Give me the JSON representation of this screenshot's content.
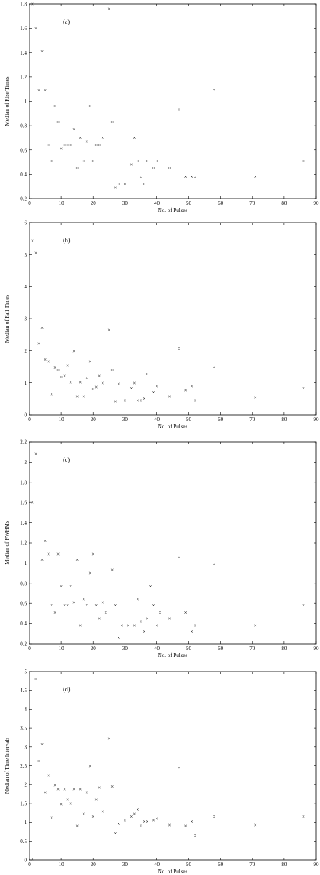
{
  "chart_data": [
    {
      "type": "scatter",
      "panel_label": "(a)",
      "xlabel": "No. of Pulses",
      "ylabel": "Median of Rise Times",
      "xlim": [
        0,
        90
      ],
      "ylim": [
        0.2,
        1.8
      ],
      "xticks": [
        0,
        10,
        20,
        30,
        40,
        50,
        60,
        70,
        80,
        90
      ],
      "yticks": [
        0.2,
        0.4,
        0.6,
        0.8,
        1,
        1.2,
        1.4,
        1.6,
        1.8
      ],
      "ytick_labels": [
        "0.2",
        "0.4",
        "0.6",
        "0.8",
        "1",
        "1.2",
        "1.4",
        "1.6",
        "1.8"
      ],
      "marker": "×",
      "points": [
        [
          1,
          1.8
        ],
        [
          2,
          1.6
        ],
        [
          3,
          1.09
        ],
        [
          4,
          1.41
        ],
        [
          5,
          1.09
        ],
        [
          6,
          0.64
        ],
        [
          7,
          0.51
        ],
        [
          8,
          0.96
        ],
        [
          9,
          0.83
        ],
        [
          10,
          0.61
        ],
        [
          11,
          0.64
        ],
        [
          12,
          0.64
        ],
        [
          13,
          0.64
        ],
        [
          14,
          0.77
        ],
        [
          15,
          0.45
        ],
        [
          16,
          0.7
        ],
        [
          17,
          0.51
        ],
        [
          18,
          0.67
        ],
        [
          19,
          0.96
        ],
        [
          20,
          0.51
        ],
        [
          21,
          0.64
        ],
        [
          22,
          0.64
        ],
        [
          23,
          0.7
        ],
        [
          25,
          1.76
        ],
        [
          26,
          0.83
        ],
        [
          27,
          0.29
        ],
        [
          28,
          0.32
        ],
        [
          30,
          0.32
        ],
        [
          32,
          0.48
        ],
        [
          33,
          0.7
        ],
        [
          34,
          0.51
        ],
        [
          35,
          0.38
        ],
        [
          36,
          0.32
        ],
        [
          37,
          0.51
        ],
        [
          39,
          0.45
        ],
        [
          40,
          0.51
        ],
        [
          44,
          0.45
        ],
        [
          47,
          0.93
        ],
        [
          49,
          0.38
        ],
        [
          51,
          0.38
        ],
        [
          52,
          0.38
        ],
        [
          58,
          1.09
        ],
        [
          71,
          0.38
        ],
        [
          86,
          0.51
        ]
      ]
    },
    {
      "type": "scatter",
      "panel_label": "(b)",
      "xlabel": "No. of Pulses",
      "ylabel": "Median of Fall Times",
      "xlim": [
        0,
        90
      ],
      "ylim": [
        0,
        6
      ],
      "xticks": [
        0,
        10,
        20,
        30,
        40,
        50,
        60,
        70,
        80,
        90
      ],
      "yticks": [
        0,
        1,
        2,
        3,
        4,
        5,
        6
      ],
      "ytick_labels": [
        "0",
        "1",
        "2",
        "3",
        "4",
        "5",
        "6"
      ],
      "marker": "×",
      "points": [
        [
          1,
          5.43
        ],
        [
          2,
          5.05
        ],
        [
          3,
          2.23
        ],
        [
          4,
          2.71
        ],
        [
          5,
          1.72
        ],
        [
          6,
          1.66
        ],
        [
          7,
          0.64
        ],
        [
          8,
          1.47
        ],
        [
          9,
          1.4
        ],
        [
          10,
          1.18
        ],
        [
          11,
          1.21
        ],
        [
          12,
          1.53
        ],
        [
          13,
          1.02
        ],
        [
          14,
          1.98
        ],
        [
          15,
          0.57
        ],
        [
          16,
          1.02
        ],
        [
          17,
          0.57
        ],
        [
          18,
          1.15
        ],
        [
          19,
          1.66
        ],
        [
          20,
          0.8
        ],
        [
          21,
          0.86
        ],
        [
          22,
          1.21
        ],
        [
          23,
          0.99
        ],
        [
          25,
          2.65
        ],
        [
          26,
          1.4
        ],
        [
          27,
          0.42
        ],
        [
          28,
          0.96
        ],
        [
          30,
          0.45
        ],
        [
          32,
          0.83
        ],
        [
          33,
          0.99
        ],
        [
          34,
          0.45
        ],
        [
          35,
          0.45
        ],
        [
          36,
          0.51
        ],
        [
          37,
          1.28
        ],
        [
          39,
          0.7
        ],
        [
          40,
          0.89
        ],
        [
          44,
          0.57
        ],
        [
          47,
          2.07
        ],
        [
          49,
          0.77
        ],
        [
          51,
          0.89
        ],
        [
          52,
          0.45
        ],
        [
          58,
          1.5
        ],
        [
          71,
          0.54
        ],
        [
          86,
          0.83
        ]
      ]
    },
    {
      "type": "scatter",
      "panel_label": "(c)",
      "xlabel": "No. of Pulses",
      "ylabel": "Median of FWHMs",
      "xlim": [
        0,
        90
      ],
      "ylim": [
        0.2,
        2.2
      ],
      "xticks": [
        0,
        10,
        20,
        30,
        40,
        50,
        60,
        70,
        80,
        90
      ],
      "yticks": [
        0.2,
        0.4,
        0.6,
        0.8,
        1,
        1.2,
        1.4,
        1.6,
        1.8,
        2,
        2.2
      ],
      "ytick_labels": [
        "0.2",
        "0.4",
        "0.6",
        "0.8",
        "1",
        "1.2",
        "1.4",
        "1.6",
        "1.8",
        "2",
        "2.2"
      ],
      "marker": "×",
      "points": [
        [
          1,
          1.6
        ],
        [
          2,
          2.08
        ],
        [
          4,
          1.03
        ],
        [
          5,
          1.22
        ],
        [
          6,
          1.09
        ],
        [
          7,
          0.58
        ],
        [
          8,
          0.51
        ],
        [
          9,
          1.09
        ],
        [
          10,
          0.77
        ],
        [
          11,
          0.58
        ],
        [
          12,
          0.58
        ],
        [
          13,
          0.77
        ],
        [
          14,
          0.61
        ],
        [
          15,
          1.03
        ],
        [
          16,
          0.38
        ],
        [
          17,
          0.64
        ],
        [
          18,
          0.58
        ],
        [
          19,
          0.9
        ],
        [
          20,
          1.09
        ],
        [
          21,
          0.58
        ],
        [
          22,
          0.45
        ],
        [
          23,
          0.61
        ],
        [
          24,
          0.51
        ],
        [
          26,
          0.93
        ],
        [
          27,
          0.58
        ],
        [
          28,
          0.26
        ],
        [
          29,
          0.38
        ],
        [
          31,
          0.38
        ],
        [
          33,
          0.38
        ],
        [
          34,
          0.64
        ],
        [
          35,
          0.42
        ],
        [
          36,
          0.32
        ],
        [
          37,
          0.45
        ],
        [
          38,
          0.77
        ],
        [
          39,
          0.58
        ],
        [
          40,
          0.38
        ],
        [
          41,
          0.51
        ],
        [
          44,
          0.45
        ],
        [
          47,
          1.06
        ],
        [
          49,
          0.51
        ],
        [
          51,
          0.32
        ],
        [
          52,
          0.38
        ],
        [
          58,
          0.99
        ],
        [
          71,
          0.38
        ],
        [
          86,
          0.58
        ]
      ]
    },
    {
      "type": "scatter",
      "panel_label": "(d)",
      "xlabel": "No. of Pulses",
      "ylabel": "Median of Time Intervals",
      "xlim": [
        0,
        90
      ],
      "ylim": [
        0,
        5
      ],
      "xticks": [
        0,
        10,
        20,
        30,
        40,
        50,
        60,
        70,
        80,
        90
      ],
      "yticks": [
        0,
        0.5,
        1,
        1.5,
        2,
        2.5,
        3,
        3.5,
        4,
        4.5,
        5
      ],
      "ytick_labels": [
        "0",
        "0.5",
        "1",
        "1.5",
        "2",
        "2.5",
        "3",
        "3.5",
        "4",
        "4.5",
        "5"
      ],
      "marker": "×",
      "points": [
        [
          1,
          0.02
        ],
        [
          2,
          4.8
        ],
        [
          3,
          2.62
        ],
        [
          4,
          3.07
        ],
        [
          5,
          1.79
        ],
        [
          6,
          2.23
        ],
        [
          7,
          1.12
        ],
        [
          8,
          1.98
        ],
        [
          9,
          1.88
        ],
        [
          10,
          1.47
        ],
        [
          11,
          1.88
        ],
        [
          12,
          1.6
        ],
        [
          13,
          1.5
        ],
        [
          14,
          1.88
        ],
        [
          15,
          0.9
        ],
        [
          16,
          1.88
        ],
        [
          17,
          1.22
        ],
        [
          18,
          1.79
        ],
        [
          19,
          2.49
        ],
        [
          20,
          1.15
        ],
        [
          21,
          1.6
        ],
        [
          22,
          1.92
        ],
        [
          23,
          1.28
        ],
        [
          25,
          3.23
        ],
        [
          26,
          1.95
        ],
        [
          27,
          0.7
        ],
        [
          28,
          0.96
        ],
        [
          30,
          1.05
        ],
        [
          32,
          1.15
        ],
        [
          33,
          1.22
        ],
        [
          34,
          1.34
        ],
        [
          35,
          0.9
        ],
        [
          36,
          1.02
        ],
        [
          37,
          1.02
        ],
        [
          39,
          1.05
        ],
        [
          40,
          1.09
        ],
        [
          44,
          0.93
        ],
        [
          47,
          2.43
        ],
        [
          49,
          0.9
        ],
        [
          51,
          1.02
        ],
        [
          52,
          0.64
        ],
        [
          58,
          1.15
        ],
        [
          71,
          0.93
        ],
        [
          86,
          1.15
        ]
      ]
    }
  ]
}
